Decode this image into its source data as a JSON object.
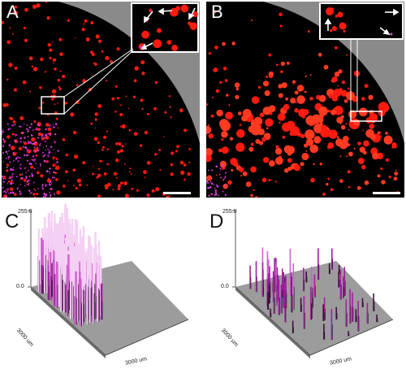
{
  "panels": {
    "a": {
      "letter": "A"
    },
    "b": {
      "letter": "B"
    },
    "c": {
      "letter": "C",
      "z_max": "255.0",
      "z_min": "0.0",
      "x_unit": "3000 um",
      "y_unit": "3000 um"
    },
    "d": {
      "letter": "D",
      "z_max": "255.0",
      "z_min": "0.0",
      "x_unit": "3000 um",
      "y_unit": "3000 um"
    }
  },
  "colors": {
    "signal_red": "#ff1a10",
    "signal_magenta": "#e040e0",
    "background": "#000000",
    "mask_gray": "#8a8a8a",
    "plot_floor": "#9c9c9c",
    "scale_bar": "#ffffff"
  }
}
